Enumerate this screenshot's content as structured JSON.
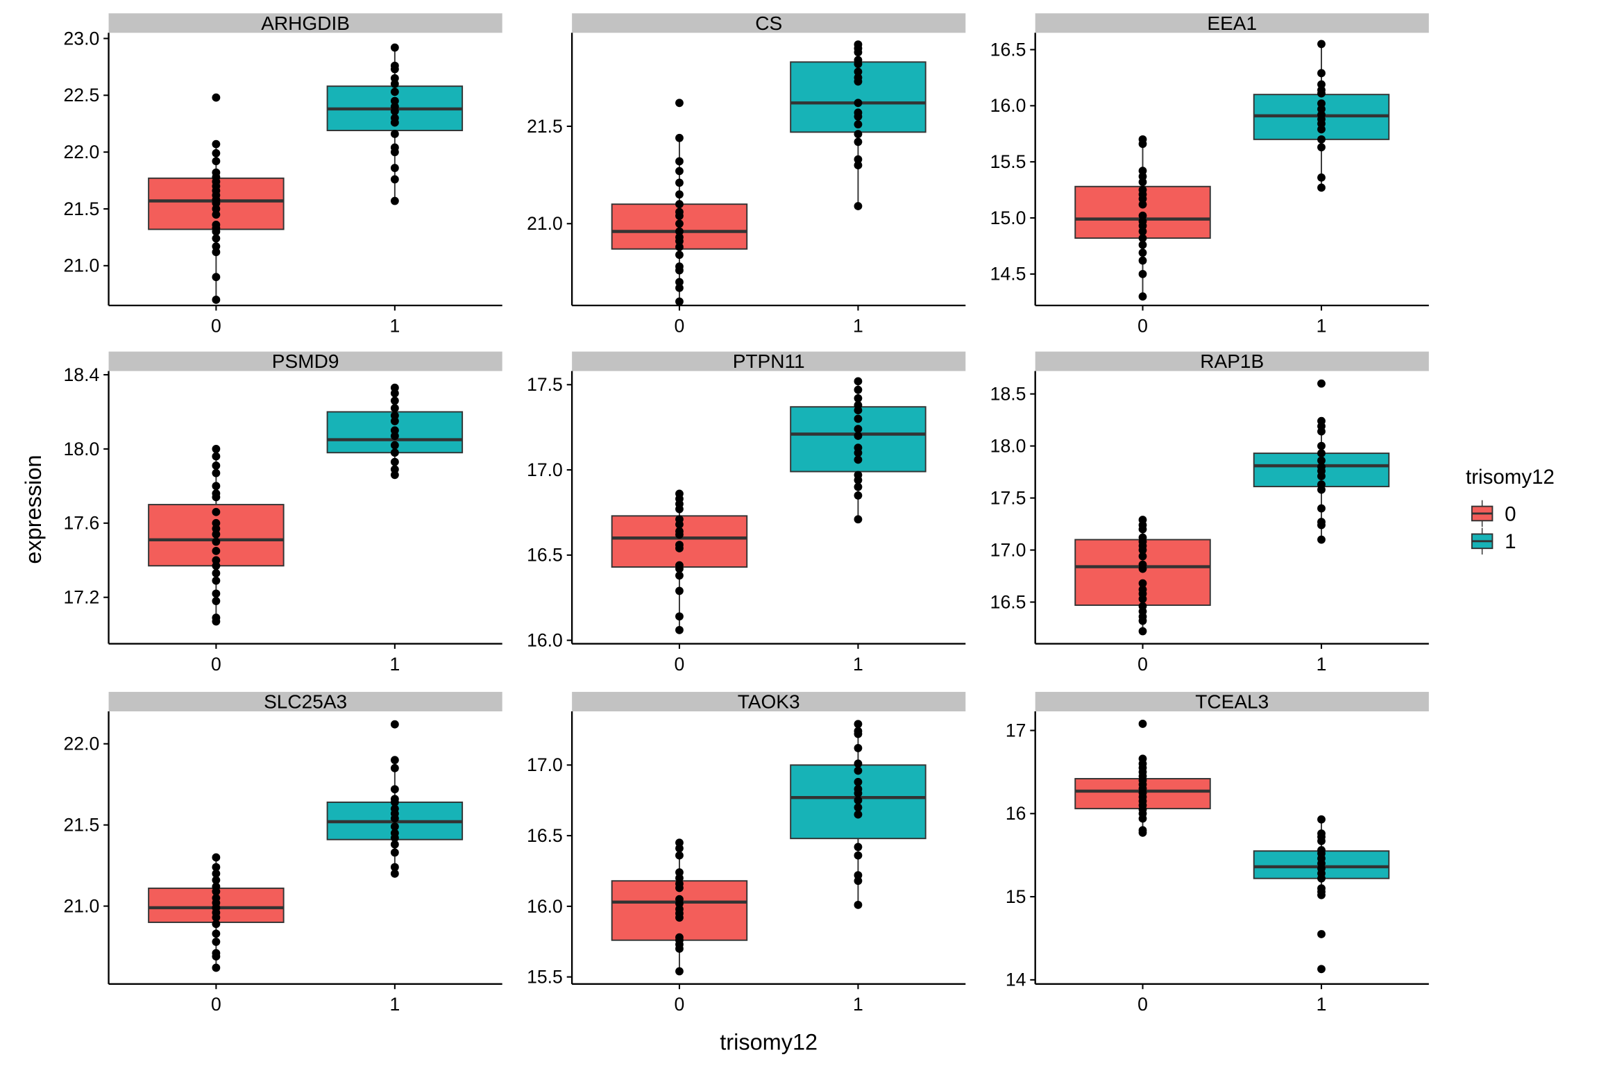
{
  "chart_data": {
    "type": "boxplot",
    "layout": "facet_wrap 3x3",
    "xlabel": "trisomy12",
    "ylabel": "expression",
    "categories": [
      "0",
      "1"
    ],
    "legend": {
      "title": "trisomy12",
      "position": "right",
      "entries": [
        {
          "label": "0",
          "color": "#F35E5A"
        },
        {
          "label": "1",
          "color": "#17B3B7"
        }
      ]
    },
    "colors": {
      "box_outline": "#333333",
      "point": "#000000",
      "strip_bg": "#C2C2C2",
      "axis": "#000000"
    },
    "facets": [
      {
        "title": "ARHGDIB",
        "ylim": [
          20.65,
          23.05
        ],
        "yticks": [
          21.0,
          21.5,
          22.0,
          22.5,
          23.0
        ],
        "tick_format": 1,
        "groups": [
          {
            "x": "0",
            "whisker_low": 20.7,
            "q1": 21.32,
            "median": 21.57,
            "q3": 21.77,
            "whisker_high": 22.07,
            "points": [
              20.7,
              20.9,
              21.12,
              21.17,
              21.24,
              21.3,
              21.33,
              21.36,
              21.45,
              21.5,
              21.55,
              21.58,
              21.62,
              21.66,
              21.7,
              21.74,
              21.78,
              21.82,
              21.92,
              21.99,
              22.07,
              22.48
            ]
          },
          {
            "x": "1",
            "whisker_low": 21.57,
            "q1": 22.19,
            "median": 22.38,
            "q3": 22.58,
            "whisker_high": 22.92,
            "points": [
              21.57,
              21.76,
              21.86,
              22.0,
              22.04,
              22.16,
              22.26,
              22.3,
              22.36,
              22.4,
              22.45,
              22.53,
              22.6,
              22.65,
              22.73,
              22.76,
              22.92
            ]
          }
        ]
      },
      {
        "title": "CS",
        "ylim": [
          20.58,
          21.98
        ],
        "yticks": [
          21.0,
          21.5
        ],
        "tick_format": 1,
        "groups": [
          {
            "x": "0",
            "whisker_low": 20.6,
            "q1": 20.87,
            "median": 20.96,
            "q3": 21.1,
            "whisker_high": 21.44,
            "points": [
              20.6,
              20.67,
              20.7,
              20.76,
              20.78,
              20.84,
              20.88,
              20.91,
              20.93,
              20.96,
              21.0,
              21.04,
              21.06,
              21.1,
              21.15,
              21.21,
              21.27,
              21.32,
              21.44,
              21.62
            ]
          },
          {
            "x": "1",
            "whisker_low": 21.09,
            "q1": 21.47,
            "median": 21.62,
            "q3": 21.83,
            "whisker_high": 21.92,
            "points": [
              21.09,
              21.3,
              21.33,
              21.42,
              21.46,
              21.51,
              21.55,
              21.57,
              21.62,
              21.73,
              21.75,
              21.78,
              21.82,
              21.84,
              21.88,
              21.9,
              21.92
            ]
          }
        ]
      },
      {
        "title": "EEA1",
        "ylim": [
          14.22,
          16.65
        ],
        "yticks": [
          14.5,
          15.0,
          15.5,
          16.0,
          16.5
        ],
        "tick_format": 1,
        "groups": [
          {
            "x": "0",
            "whisker_low": 14.3,
            "q1": 14.82,
            "median": 14.99,
            "q3": 15.28,
            "whisker_high": 15.7,
            "points": [
              14.3,
              14.5,
              14.62,
              14.69,
              14.76,
              14.82,
              14.88,
              14.93,
              14.97,
              15.02,
              15.12,
              15.17,
              15.21,
              15.25,
              15.32,
              15.37,
              15.42,
              15.66,
              15.7
            ]
          },
          {
            "x": "1",
            "whisker_low": 15.27,
            "q1": 15.7,
            "median": 15.91,
            "q3": 16.1,
            "whisker_high": 16.55,
            "points": [
              15.27,
              15.36,
              15.63,
              15.7,
              15.79,
              15.84,
              15.88,
              15.92,
              15.97,
              16.02,
              16.11,
              16.14,
              16.19,
              16.29,
              16.55
            ]
          }
        ]
      },
      {
        "title": "PSMD9",
        "ylim": [
          16.95,
          18.42
        ],
        "yticks": [
          17.2,
          17.6,
          18.0,
          18.4
        ],
        "tick_format": 1,
        "groups": [
          {
            "x": "0",
            "whisker_low": 17.07,
            "q1": 17.37,
            "median": 17.51,
            "q3": 17.7,
            "whisker_high": 18.0,
            "points": [
              17.07,
              17.09,
              17.18,
              17.22,
              17.29,
              17.33,
              17.37,
              17.4,
              17.45,
              17.5,
              17.54,
              17.57,
              17.6,
              17.66,
              17.74,
              17.76,
              17.8,
              17.87,
              17.91,
              17.96,
              18.0
            ]
          },
          {
            "x": "1",
            "whisker_low": 17.86,
            "q1": 17.98,
            "median": 18.05,
            "q3": 18.2,
            "whisker_high": 18.33,
            "points": [
              17.86,
              17.89,
              17.93,
              17.98,
              18.02,
              18.07,
              18.1,
              18.15,
              18.18,
              18.22,
              18.26,
              18.3,
              18.33
            ]
          }
        ]
      },
      {
        "title": "PTPN11",
        "ylim": [
          15.98,
          17.58
        ],
        "yticks": [
          16.0,
          16.5,
          17.0,
          17.5
        ],
        "tick_format": 1,
        "groups": [
          {
            "x": "0",
            "whisker_low": 16.06,
            "q1": 16.43,
            "median": 16.6,
            "q3": 16.73,
            "whisker_high": 16.86,
            "points": [
              16.06,
              16.14,
              16.29,
              16.38,
              16.42,
              16.44,
              16.54,
              16.56,
              16.62,
              16.64,
              16.68,
              16.71,
              16.77,
              16.8,
              16.83,
              16.86
            ]
          },
          {
            "x": "1",
            "whisker_low": 16.71,
            "q1": 16.99,
            "median": 17.21,
            "q3": 17.37,
            "whisker_high": 17.52,
            "points": [
              16.71,
              16.85,
              16.9,
              16.94,
              16.97,
              17.06,
              17.1,
              17.13,
              17.2,
              17.24,
              17.3,
              17.35,
              17.38,
              17.42,
              17.47,
              17.52
            ]
          }
        ]
      },
      {
        "title": "RAP1B",
        "ylim": [
          16.1,
          18.72
        ],
        "yticks": [
          16.5,
          17.0,
          17.5,
          18.0,
          18.5
        ],
        "tick_format": 1,
        "groups": [
          {
            "x": "0",
            "whisker_low": 16.22,
            "q1": 16.47,
            "median": 16.84,
            "q3": 17.1,
            "whisker_high": 17.29,
            "points": [
              16.22,
              16.32,
              16.36,
              16.41,
              16.46,
              16.53,
              16.58,
              16.62,
              16.68,
              16.82,
              16.86,
              16.94,
              17.0,
              17.04,
              17.08,
              17.12,
              17.2,
              17.24,
              17.29
            ]
          },
          {
            "x": "1",
            "whisker_low": 17.1,
            "q1": 17.61,
            "median": 17.81,
            "q3": 17.93,
            "whisker_high": 18.24,
            "points": [
              17.1,
              17.24,
              17.27,
              17.4,
              17.58,
              17.63,
              17.71,
              17.76,
              17.8,
              17.86,
              17.93,
              18.0,
              18.14,
              18.19,
              18.24,
              18.6
            ]
          }
        ]
      },
      {
        "title": "SLC25A3",
        "ylim": [
          20.52,
          22.2
        ],
        "yticks": [
          21.0,
          21.5,
          22.0
        ],
        "tick_format": 1,
        "groups": [
          {
            "x": "0",
            "whisker_low": 20.62,
            "q1": 20.9,
            "median": 20.99,
            "q3": 21.11,
            "whisker_high": 21.3,
            "points": [
              20.62,
              20.69,
              20.71,
              20.78,
              20.83,
              20.89,
              20.93,
              20.96,
              20.99,
              21.02,
              21.05,
              21.09,
              21.12,
              21.16,
              21.2,
              21.24,
              21.3
            ]
          },
          {
            "x": "1",
            "whisker_low": 21.2,
            "q1": 21.41,
            "median": 21.52,
            "q3": 21.64,
            "whisker_high": 21.9,
            "points": [
              21.2,
              21.24,
              21.33,
              21.38,
              21.42,
              21.45,
              21.49,
              21.54,
              21.57,
              21.6,
              21.64,
              21.66,
              21.72,
              21.85,
              21.9,
              22.12
            ]
          }
        ]
      },
      {
        "title": "TAOK3",
        "ylim": [
          15.45,
          17.38
        ],
        "yticks": [
          15.5,
          16.0,
          16.5,
          17.0
        ],
        "tick_format": 1,
        "groups": [
          {
            "x": "0",
            "whisker_low": 15.54,
            "q1": 15.76,
            "median": 16.03,
            "q3": 16.18,
            "whisker_high": 16.45,
            "points": [
              15.54,
              15.7,
              15.73,
              15.76,
              15.78,
              15.92,
              15.95,
              15.98,
              16.02,
              16.05,
              16.13,
              16.16,
              16.2,
              16.24,
              16.36,
              16.41,
              16.45
            ]
          },
          {
            "x": "1",
            "whisker_low": 16.01,
            "q1": 16.48,
            "median": 16.77,
            "q3": 17.0,
            "whisker_high": 17.29,
            "points": [
              16.01,
              16.18,
              16.22,
              16.36,
              16.42,
              16.65,
              16.7,
              16.75,
              16.8,
              16.83,
              16.88,
              16.96,
              17.01,
              17.12,
              17.22,
              17.24,
              17.29
            ]
          }
        ]
      },
      {
        "title": "TCEAL3",
        "ylim": [
          13.95,
          17.23
        ],
        "yticks": [
          14,
          15,
          16,
          17
        ],
        "tick_format": 0,
        "groups": [
          {
            "x": "0",
            "whisker_low": 15.77,
            "q1": 16.06,
            "median": 16.27,
            "q3": 16.42,
            "whisker_high": 16.66,
            "points": [
              15.77,
              15.8,
              15.94,
              16.0,
              16.05,
              16.1,
              16.15,
              16.2,
              16.25,
              16.3,
              16.35,
              16.4,
              16.45,
              16.5,
              16.55,
              16.6,
              16.66,
              17.08
            ]
          },
          {
            "x": "1",
            "whisker_low": 15.02,
            "q1": 15.22,
            "median": 15.36,
            "q3": 15.55,
            "whisker_high": 15.93,
            "points": [
              14.13,
              14.55,
              15.02,
              15.06,
              15.1,
              15.22,
              15.28,
              15.34,
              15.4,
              15.46,
              15.52,
              15.56,
              15.67,
              15.72,
              15.76,
              15.93
            ]
          }
        ]
      }
    ]
  }
}
